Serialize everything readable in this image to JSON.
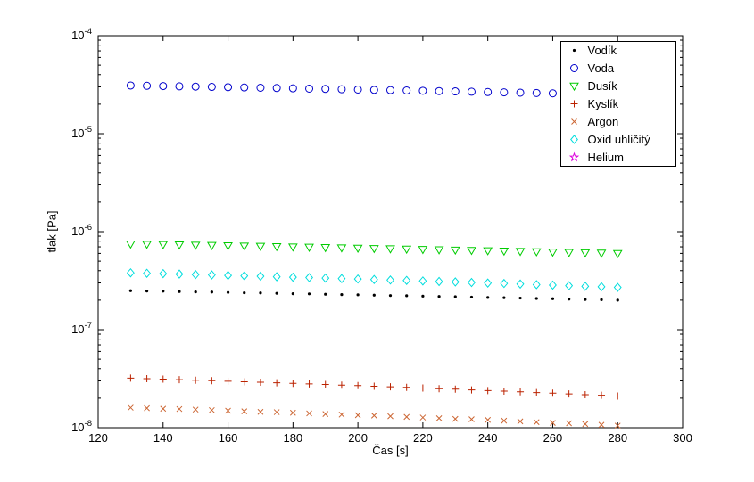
{
  "figure": {
    "background": "#ffffff",
    "axis_color": "#000000",
    "text_color": "#000000"
  },
  "chart_data": {
    "type": "scatter",
    "title": "",
    "xlabel": "Čas [s]",
    "ylabel": "tlak [Pa]",
    "y_scale": "log",
    "xlim": [
      120,
      300
    ],
    "ylim_exp": [
      -8,
      -4
    ],
    "x_ticks": [
      120,
      140,
      160,
      180,
      200,
      220,
      240,
      260,
      280,
      300
    ],
    "y_ticks_exp": [
      -8,
      -7,
      -6,
      -5,
      -4
    ],
    "grid": false,
    "legend_position": "northeast",
    "x": [
      130,
      135,
      140,
      145,
      150,
      155,
      160,
      165,
      170,
      175,
      180,
      185,
      190,
      195,
      200,
      205,
      210,
      215,
      220,
      225,
      230,
      235,
      240,
      245,
      250,
      255,
      260,
      265,
      270,
      275,
      280
    ],
    "series": [
      {
        "name": "Vodík",
        "marker": "dot",
        "color": "#000000",
        "values": [
          2.5e-07,
          2.48e-07,
          2.47e-07,
          2.45e-07,
          2.43e-07,
          2.42e-07,
          2.4e-07,
          2.38e-07,
          2.37e-07,
          2.35e-07,
          2.33e-07,
          2.32e-07,
          2.3e-07,
          2.28e-07,
          2.27e-07,
          2.25e-07,
          2.23e-07,
          2.22e-07,
          2.2e-07,
          2.18e-07,
          2.17e-07,
          2.15e-07,
          2.13e-07,
          2.12e-07,
          2.1e-07,
          2.08e-07,
          2.07e-07,
          2.05e-07,
          2.03e-07,
          2.02e-07,
          2e-07
        ]
      },
      {
        "name": "Voda",
        "marker": "circle",
        "color": "#0000cc",
        "values": [
          3.1e-05,
          3.08e-05,
          3.06e-05,
          3.04e-05,
          3.02e-05,
          3e-05,
          2.98e-05,
          2.96e-05,
          2.94e-05,
          2.92e-05,
          2.9e-05,
          2.88e-05,
          2.86e-05,
          2.84e-05,
          2.82e-05,
          2.8e-05,
          2.78e-05,
          2.76e-05,
          2.74e-05,
          2.72e-05,
          2.7e-05,
          2.68e-05,
          2.66e-05,
          2.64e-05,
          2.62e-05,
          2.6e-05,
          2.58e-05,
          2.56e-05,
          2.54e-05,
          2.52e-05,
          2.5e-05
        ]
      },
      {
        "name": "Dusík",
        "marker": "triangle-down",
        "color": "#00cc00",
        "values": [
          7.5e-07,
          7.45e-07,
          7.4e-07,
          7.35e-07,
          7.3e-07,
          7.25e-07,
          7.2e-07,
          7.15e-07,
          7.1e-07,
          7.05e-07,
          7e-07,
          6.95e-07,
          6.9e-07,
          6.85e-07,
          6.8e-07,
          6.75e-07,
          6.7e-07,
          6.65e-07,
          6.6e-07,
          6.55e-07,
          6.5e-07,
          6.45e-07,
          6.4e-07,
          6.35e-07,
          6.3e-07,
          6.25e-07,
          6.2e-07,
          6.15e-07,
          6.1e-07,
          6.05e-07,
          6e-07
        ]
      },
      {
        "name": "Kyslík",
        "marker": "plus",
        "color": "#bb2200",
        "values": [
          3.2e-08,
          3.16e-08,
          3.13e-08,
          3.09e-08,
          3.05e-08,
          3.02e-08,
          2.98e-08,
          2.94e-08,
          2.91e-08,
          2.87e-08,
          2.83e-08,
          2.8e-08,
          2.76e-08,
          2.72e-08,
          2.69e-08,
          2.65e-08,
          2.61e-08,
          2.58e-08,
          2.54e-08,
          2.5e-08,
          2.47e-08,
          2.43e-08,
          2.39e-08,
          2.36e-08,
          2.32e-08,
          2.28e-08,
          2.25e-08,
          2.21e-08,
          2.17e-08,
          2.14e-08,
          2.1e-08
        ]
      },
      {
        "name": "Argon",
        "marker": "x",
        "color": "#cc6633",
        "values": [
          1.6e-08,
          1.58e-08,
          1.56e-08,
          1.55e-08,
          1.53e-08,
          1.51e-08,
          1.49e-08,
          1.47e-08,
          1.45e-08,
          1.44e-08,
          1.42e-08,
          1.4e-08,
          1.38e-08,
          1.36e-08,
          1.34e-08,
          1.33e-08,
          1.31e-08,
          1.29e-08,
          1.27e-08,
          1.25e-08,
          1.23e-08,
          1.22e-08,
          1.2e-08,
          1.18e-08,
          1.16e-08,
          1.14e-08,
          1.12e-08,
          1.11e-08,
          1.09e-08,
          1.07e-08,
          1.05e-08
        ]
      },
      {
        "name": "Oxid uhličitý",
        "marker": "diamond",
        "color": "#00dddd",
        "values": [
          3.8e-07,
          3.76e-07,
          3.73e-07,
          3.69e-07,
          3.65e-07,
          3.62e-07,
          3.58e-07,
          3.54e-07,
          3.51e-07,
          3.47e-07,
          3.43e-07,
          3.4e-07,
          3.36e-07,
          3.32e-07,
          3.29e-07,
          3.25e-07,
          3.21e-07,
          3.18e-07,
          3.14e-07,
          3.1e-07,
          3.07e-07,
          3.03e-07,
          2.99e-07,
          2.96e-07,
          2.92e-07,
          2.88e-07,
          2.85e-07,
          2.81e-07,
          2.77e-07,
          2.74e-07,
          2.7e-07
        ]
      },
      {
        "name": "Helium",
        "marker": "pentagram",
        "color": "#dd00dd",
        "values": []
      }
    ],
    "legend_order": [
      "Vodík",
      "Voda",
      "Dusík",
      "Kyslík",
      "Argon",
      "Oxid uhličitý",
      "Helium"
    ]
  }
}
